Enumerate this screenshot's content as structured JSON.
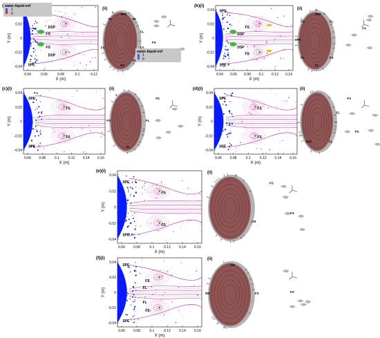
{
  "figure": {
    "panels": [
      {
        "id": "a",
        "sub1_label": "(a)(i)",
        "sub2_label": "(ii)",
        "x_label": "X (m)",
        "y_label": "Y (m)",
        "x_ticks": [
          "0.04",
          "0.06",
          "0.08",
          "0.1",
          "0.12"
        ],
        "y_ticks": [
          "0.04",
          "0.02",
          "0",
          "-0.02",
          "-0.04"
        ],
        "annotations": [
          "SPE",
          "DSP",
          "FS",
          "FS",
          "DSP",
          "SPE"
        ],
        "view3d_labels": [
          "SPE",
          "FL",
          "FL",
          "FS",
          "FL",
          "FS",
          "FS",
          "FS",
          "FS",
          "FL"
        ],
        "legend": {
          "title": "water-liquid-vof",
          "max": "1",
          "min": "0"
        },
        "legend2": {
          "title": "water-liquid-vof",
          "max": "1",
          "min": "0"
        }
      },
      {
        "id": "b",
        "sub1_label": "(b)(i)",
        "sub2_label": "(ii)",
        "x_label": "X (m)",
        "y_label": "Y (m)",
        "x_ticks": [
          "0.04",
          "0.06",
          "0.08",
          "0.1",
          "0.12",
          "0.14"
        ],
        "y_ticks": [
          "0.04",
          "0.02",
          "0",
          "-0.02",
          "-0.04"
        ],
        "annotations": [
          "SPE",
          "FS",
          "DSP",
          "DSP",
          "FS",
          "SPE"
        ],
        "view3d_labels": [
          "SPE",
          "FL",
          "FS",
          "FS",
          "FL",
          "FL",
          "SPE",
          "FS"
        ]
      },
      {
        "id": "c",
        "sub1_label": "(c)(i)",
        "sub2_label": "(ii)",
        "x_label": "X (m)",
        "y_label": "Y (m)",
        "x_ticks": [
          "0.06",
          "0.08",
          "0.1",
          "0.12",
          "0.14",
          "0.16"
        ],
        "y_ticks": [
          "0.04",
          "0.02",
          "0",
          "-0.02",
          "-0.04"
        ],
        "annotations": [
          "SPE",
          "FS",
          "FS",
          "SPE"
        ],
        "view3d_labels": [
          "FS",
          "FL",
          "FL",
          "FS"
        ]
      },
      {
        "id": "d",
        "sub1_label": "(d)(i)",
        "sub2_label": "(ii)",
        "x_label": "X (m)",
        "y_label": "Y (m)",
        "x_ticks": [
          "0.06",
          "0.08",
          "0.1",
          "0.12",
          "0.14",
          "0.16"
        ],
        "y_ticks": [
          "0.04",
          "0.02",
          "0",
          "-0.02",
          "-0.04"
        ],
        "annotations": [
          "SPE",
          "FS",
          "FS",
          "SPE"
        ],
        "view3d_labels": [
          "FS",
          "FL",
          "FL",
          "SPE",
          "FS"
        ]
      },
      {
        "id": "e",
        "sub1_label": "(e)(i)",
        "sub2_label": "(ii)",
        "x_label": "X (m)",
        "y_label": "Y (m)",
        "x_ticks": [
          "0.06",
          "0.08",
          "0.1",
          "0.12",
          "0.14",
          "0.16"
        ],
        "y_ticks": [
          "0.04",
          "0.02",
          "0",
          "-0.02",
          "-0.04"
        ],
        "annotations": [
          "SPE",
          "FS",
          "FS",
          "SPE"
        ],
        "view3d_labels": [
          "FS",
          "CR",
          "FS"
        ]
      },
      {
        "id": "f",
        "sub1_label": "(f)(i)",
        "sub2_label": "(ii)",
        "x_label": "X (m)",
        "y_label": "Y (m)",
        "x_ticks": [
          "0.06",
          "0.08",
          "0.1",
          "0.12",
          "0.14",
          "0.16"
        ],
        "y_ticks": [
          "0.04",
          "0.02",
          "0",
          "-0.02",
          "-0.04"
        ],
        "annotations": [
          "SPE",
          "FS",
          "FL",
          "FL",
          "FS",
          "SPE"
        ],
        "view3d_labels": [
          "CR",
          "FS",
          "FS",
          "CR"
        ]
      }
    ],
    "colors": {
      "liquid": "#0a1aff",
      "streak": "#c81f9c",
      "streak_light": "#e7b4dc",
      "green": "#3cb83c",
      "yellow": "#e6c800",
      "red": "#d42a1e",
      "droplet": "#8b4a4a",
      "shell": "#9a9a9a"
    }
  }
}
